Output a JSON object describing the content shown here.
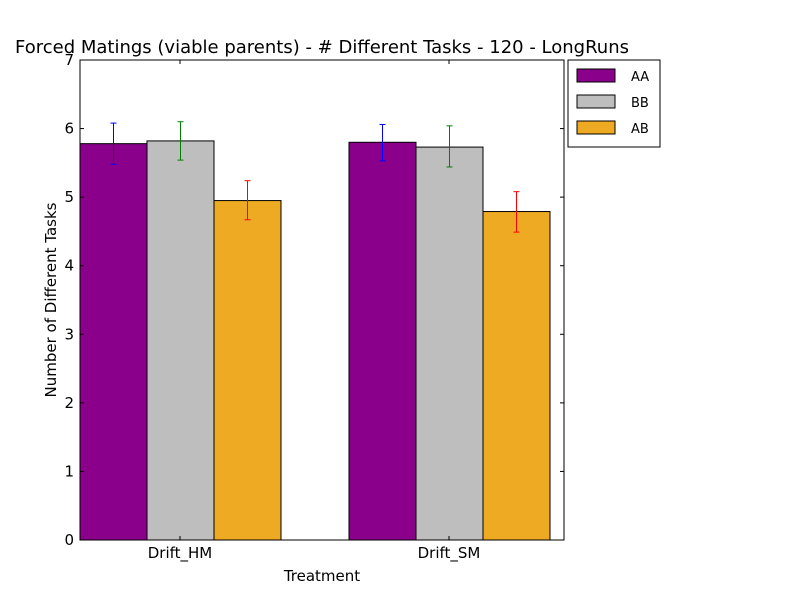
{
  "chart_data": {
    "type": "bar",
    "title": "Forced Matings (viable parents) - # Different Tasks - 120 - LongRuns",
    "xlabel": "Treatment",
    "ylabel": "Number of Different Tasks",
    "categories": [
      "Drift_HM",
      "Drift_SM"
    ],
    "ylim": [
      0,
      7
    ],
    "yticks": [
      "0",
      "1",
      "2",
      "3",
      "4",
      "5",
      "6",
      "7"
    ],
    "grid": false,
    "legend_position": "outside-top-right",
    "series": [
      {
        "name": "AA",
        "values": [
          5.78,
          5.8
        ],
        "err_low": [
          5.48,
          5.53
        ],
        "err_high": [
          6.08,
          6.06
        ],
        "color": "#8b008b",
        "err_color": "#0000ff"
      },
      {
        "name": "BB",
        "values": [
          5.82,
          5.73
        ],
        "err_low": [
          5.54,
          5.44
        ],
        "err_high": [
          6.1,
          6.04
        ],
        "color": "#bebebe",
        "err_color": "#008000"
      },
      {
        "name": "AB",
        "values": [
          4.95,
          4.79
        ],
        "err_low": [
          4.67,
          4.49
        ],
        "err_high": [
          5.24,
          5.08
        ],
        "color": "#eeaa22",
        "err_color": "#ff0000"
      }
    ]
  }
}
